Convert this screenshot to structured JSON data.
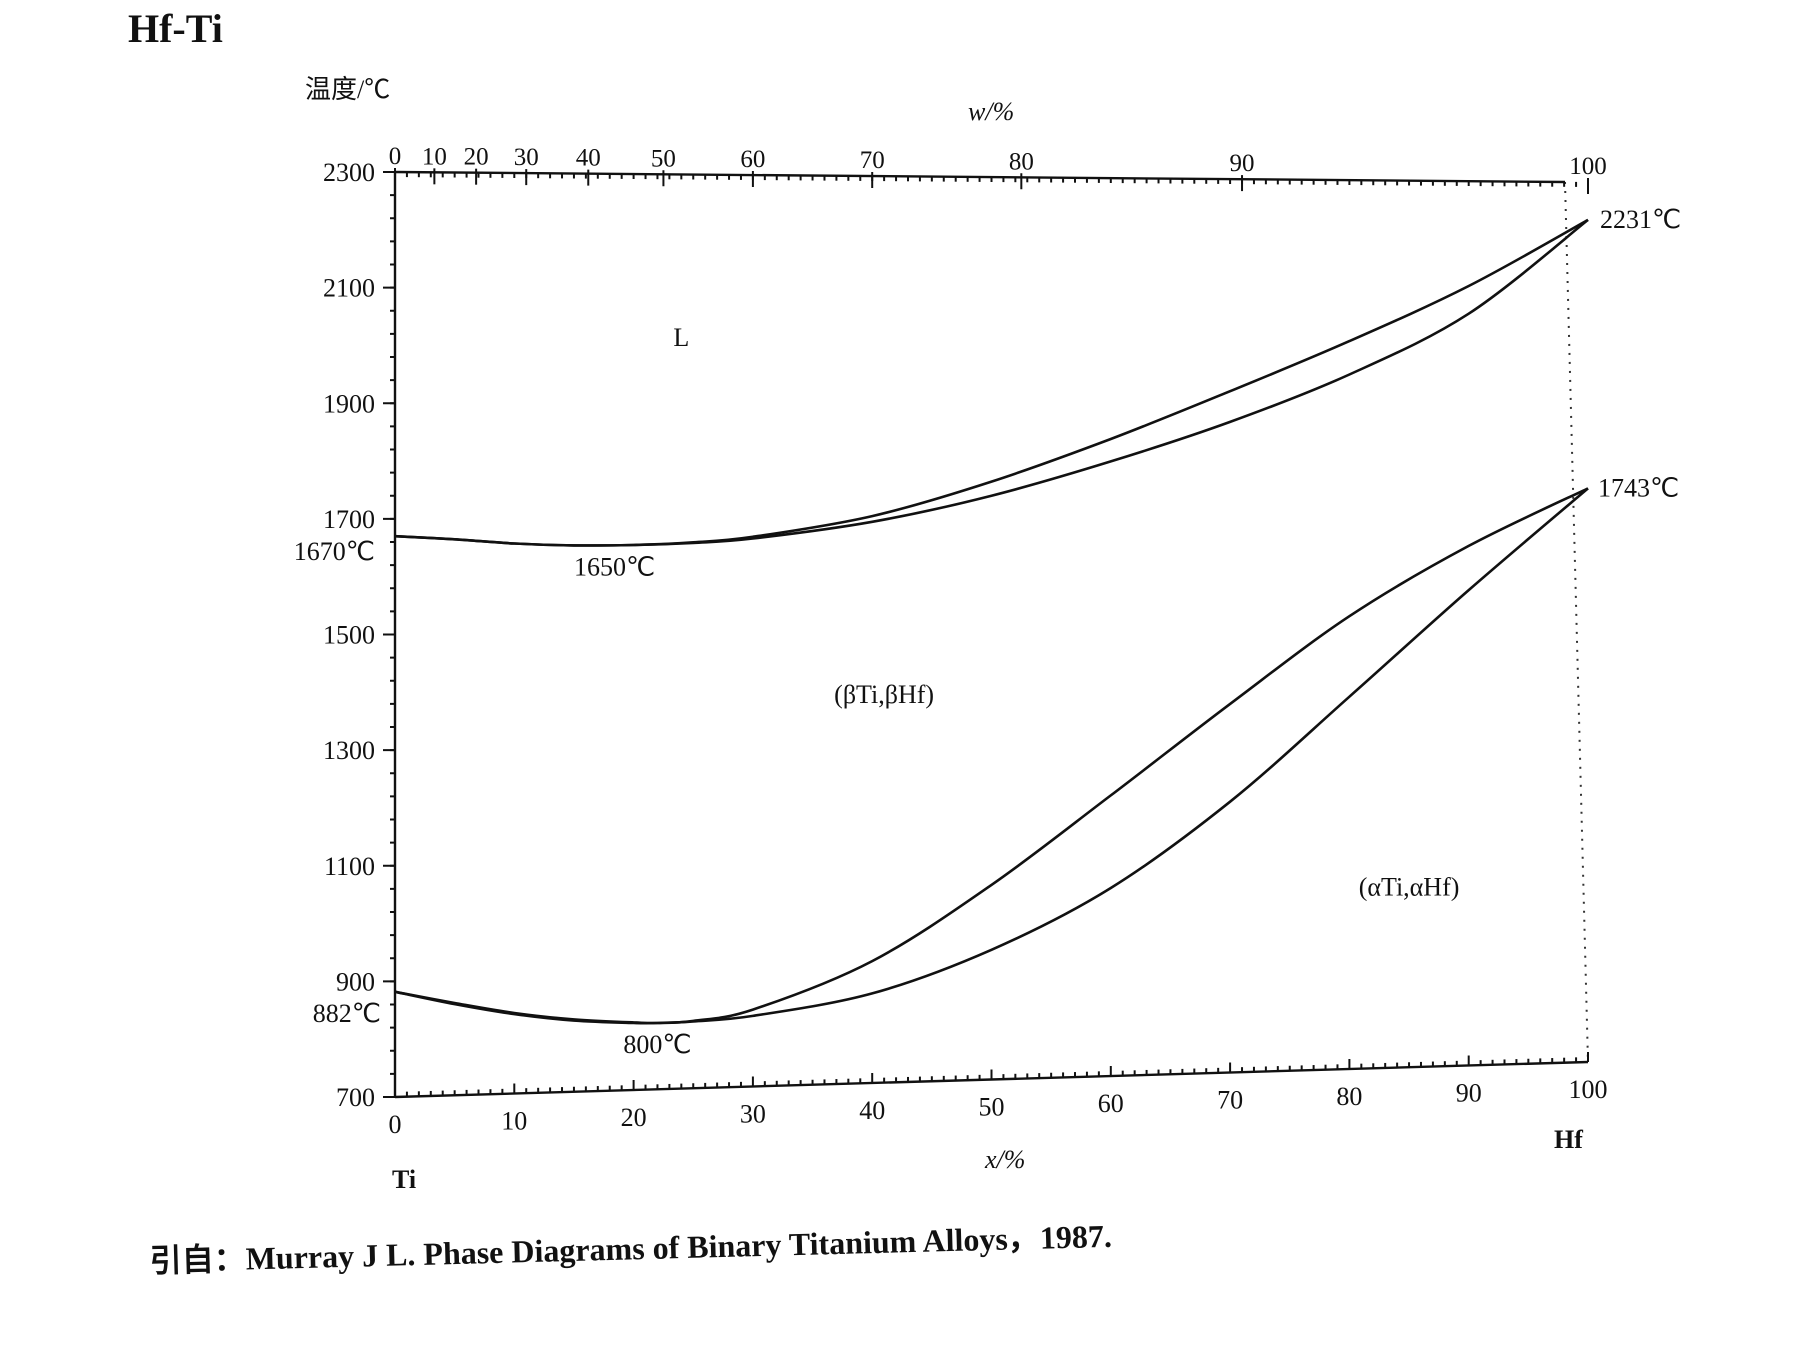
{
  "chart_data": {
    "type": "line",
    "title": "Hf-Ti",
    "ylabel": "温度/℃",
    "xlabel": "x/%",
    "top_axis_label": "w/%",
    "ylim": [
      700,
      2300
    ],
    "xlim": [
      0,
      100
    ],
    "y_ticks": [
      700,
      900,
      1100,
      1300,
      1500,
      1700,
      1900,
      2100,
      2300
    ],
    "x_ticks": [
      0,
      10,
      20,
      30,
      40,
      50,
      60,
      70,
      80,
      90,
      100
    ],
    "top_ticks": [
      {
        "w": 0,
        "x": 0
      },
      {
        "w": 10,
        "x": 3.3
      },
      {
        "w": 20,
        "x": 6.8
      },
      {
        "w": 30,
        "x": 11.0
      },
      {
        "w": 40,
        "x": 16.2
      },
      {
        "w": 50,
        "x": 22.5
      },
      {
        "w": 60,
        "x": 30.0
      },
      {
        "w": 70,
        "x": 40.0
      },
      {
        "w": 80,
        "x": 52.5
      },
      {
        "w": 90,
        "x": 71.0
      },
      {
        "w": 100,
        "x": 100
      }
    ],
    "element_left": "Ti",
    "element_right": "Hf",
    "series": [
      {
        "x": [
          0,
          5,
          10,
          15,
          20,
          25,
          30,
          40,
          50,
          60,
          70,
          80,
          90,
          100
        ],
        "y": [
          1670,
          1664,
          1656,
          1652,
          1652,
          1656,
          1665,
          1700,
          1760,
          1835,
          1920,
          2010,
          2110,
          2231
        ]
      },
      {
        "x": [
          0,
          5,
          10,
          15,
          20,
          25,
          30,
          40,
          50,
          60,
          70,
          80,
          90,
          100
        ],
        "y": [
          1670,
          1664,
          1656,
          1652,
          1652,
          1655,
          1662,
          1690,
          1735,
          1795,
          1865,
          1950,
          2060,
          2231
        ]
      },
      {
        "x": [
          0,
          5,
          10,
          15,
          20,
          22,
          25,
          30,
          40,
          50,
          60,
          70,
          80,
          90,
          100
        ],
        "y": [
          882,
          860,
          840,
          826,
          818,
          816,
          818,
          835,
          915,
          1045,
          1200,
          1360,
          1515,
          1640,
          1743
        ]
      },
      {
        "x": [
          0,
          5,
          10,
          15,
          20,
          22,
          25,
          30,
          40,
          50,
          60,
          70,
          80,
          90,
          100
        ],
        "y": [
          882,
          858,
          838,
          824,
          817,
          816,
          817,
          824,
          858,
          930,
          1035,
          1185,
          1370,
          1560,
          1743
        ]
      }
    ],
    "annotations": [
      {
        "text": "1670℃",
        "x": 0,
        "y": 1670
      },
      {
        "text": "1650℃",
        "x": 15,
        "y": 1652
      },
      {
        "text": "2231℃",
        "x": 100,
        "y": 2231
      },
      {
        "text": "1743℃",
        "x": 100,
        "y": 1743
      },
      {
        "text": "882℃",
        "x": 0,
        "y": 882
      },
      {
        "text": "800℃",
        "x": 22,
        "y": 816
      }
    ],
    "regions": [
      {
        "text": "L",
        "x": 24,
        "y": 2000
      },
      {
        "text": "(βTi,βHf)",
        "x": 41,
        "y": 1370
      },
      {
        "text": "(αTi,αHf)",
        "x": 85,
        "y": 1010
      }
    ]
  },
  "citation": "引自：Murray J L.  Phase Diagrams of Binary Titanium Alloys，1987."
}
